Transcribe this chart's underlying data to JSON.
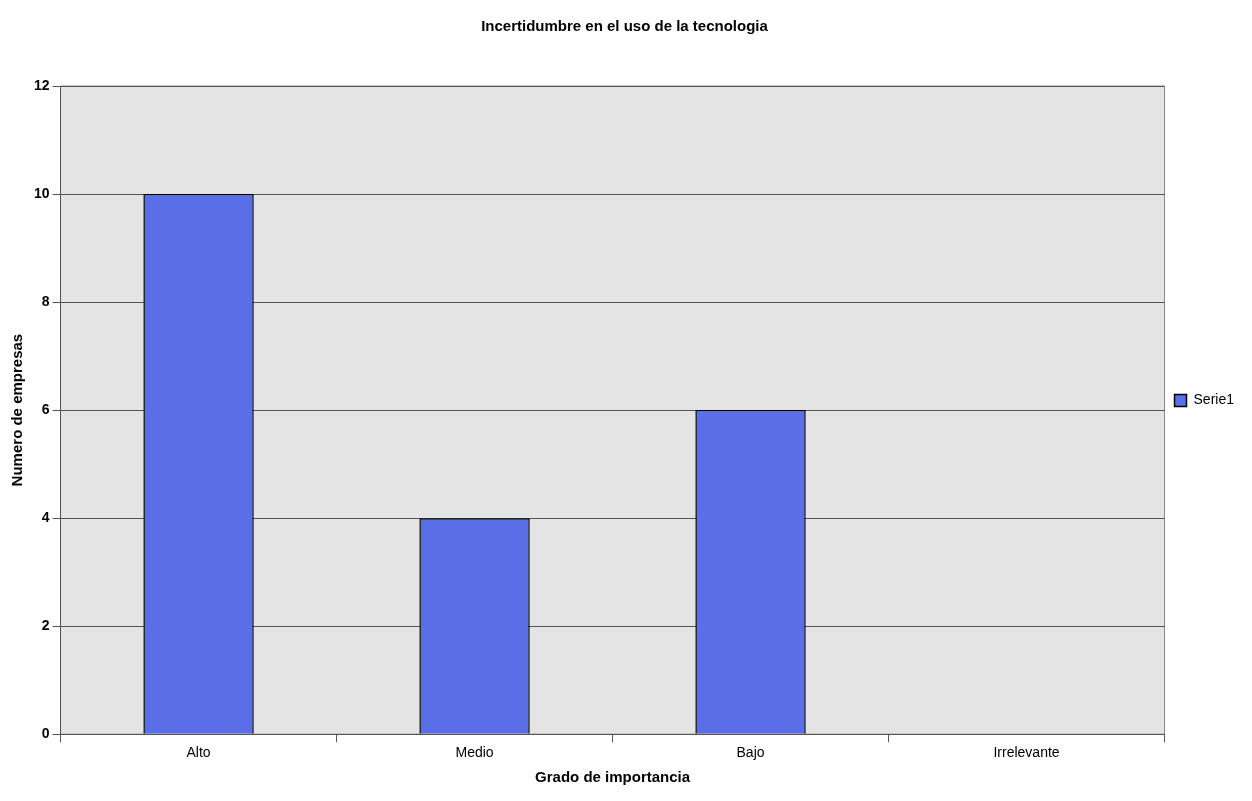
{
  "chart_data": {
    "type": "bar",
    "title": "Incertidumbre en el uso de la tecnologia",
    "xlabel": "Grado de importancia",
    "ylabel": "Numero de empresas",
    "categories": [
      "Alto",
      "Medio",
      "Bajo",
      "Irrelevante"
    ],
    "series": [
      {
        "name": "Serie1",
        "color": "#5a6ee8",
        "values": [
          10,
          4,
          6,
          0
        ]
      }
    ],
    "ylim": [
      0,
      12
    ],
    "yticks": [
      0,
      2,
      4,
      6,
      8,
      10,
      12
    ],
    "grid": "y",
    "legend": "right"
  }
}
